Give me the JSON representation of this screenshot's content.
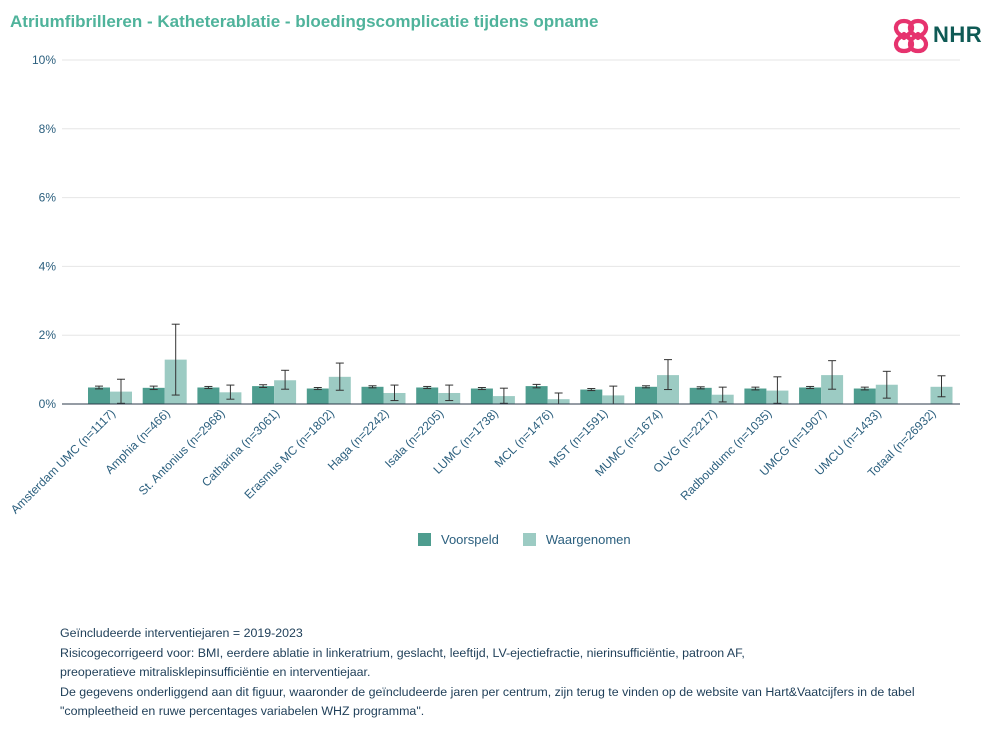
{
  "title": "Atriumfibrilleren - Katheterablatie - bloedingscomplicatie tijdens opname",
  "logo": {
    "text": "NHR",
    "icon": "heart-cross-logo-icon",
    "color": "#e6336e",
    "text_color": "#0f5a55"
  },
  "legend": [
    {
      "label": "Voorspeld",
      "color": "#4e9d8f"
    },
    {
      "label": "Waargenomen",
      "color": "#9ccbc3"
    }
  ],
  "footnote": [
    "Geïncludeerde interventiejaren = 2019-2023",
    "Risicogecorrigeerd voor: BMI, eerdere ablatie in linkeratrium, geslacht, leeftijd, LV-ejectiefractie, nierinsufficiëntie, patroon AF,",
    "preoperatieve mitralisklepinsufficiëntie en interventiejaar.",
    "De gegevens onderliggend aan dit figuur, waaronder de geïncludeerde jaren per centrum, zijn terug te vinden op de website van Hart&Vaatcijfers in de tabel",
    "\"compleetheid en ruwe percentages variabelen WHZ programma\"."
  ],
  "chart_data": {
    "type": "bar",
    "title": "Atriumfibrilleren - Katheterablatie - bloedingscomplicatie tijdens opname",
    "xlabel": "",
    "ylabel": "",
    "ylim": [
      0,
      10
    ],
    "yticks": [
      0,
      2,
      4,
      6,
      8,
      10
    ],
    "ytick_labels": [
      "0%",
      "2%",
      "4%",
      "6%",
      "8%",
      "10%"
    ],
    "grid": true,
    "legend_position": "bottom",
    "categories": [
      "Amsterdam UMC (n=1117)",
      "Amphia (n=466)",
      "St. Antonius (n=2968)",
      "Catharina (n=3061)",
      "Erasmus MC (n=1802)",
      "Haga (n=2242)",
      "Isala (n=2205)",
      "LUMC (n=1738)",
      "MCL (n=1476)",
      "MST (n=1591)",
      "MUMC (n=1674)",
      "OLVG (n=2217)",
      "Radboudumc (n=1035)",
      "UMCG (n=1907)",
      "UMCU (n=1433)",
      "Totaal (n=26932)"
    ],
    "series": [
      {
        "name": "Voorspeld",
        "color": "#4e9d8f",
        "values": [
          0.48,
          0.47,
          0.48,
          0.52,
          0.45,
          0.5,
          0.48,
          0.45,
          0.52,
          0.42,
          0.5,
          0.47,
          0.45,
          0.48,
          0.45,
          null
        ],
        "err_low": [
          0.44,
          0.42,
          0.45,
          0.48,
          0.42,
          0.47,
          0.45,
          0.42,
          0.47,
          0.39,
          0.47,
          0.44,
          0.41,
          0.45,
          0.41,
          null
        ],
        "err_high": [
          0.52,
          0.52,
          0.51,
          0.56,
          0.48,
          0.53,
          0.51,
          0.48,
          0.57,
          0.45,
          0.53,
          0.5,
          0.49,
          0.51,
          0.49,
          null
        ]
      },
      {
        "name": "Waargenomen",
        "color": "#9ccbc3",
        "values": [
          0.36,
          1.29,
          0.34,
          0.69,
          0.79,
          0.32,
          0.32,
          0.23,
          0.14,
          0.25,
          0.84,
          0.27,
          0.39,
          0.84,
          0.56,
          0.5
        ],
        "err_low": [
          0.02,
          0.26,
          0.14,
          0.43,
          0.4,
          0.1,
          0.1,
          0.02,
          0.0,
          0.0,
          0.42,
          0.06,
          0.02,
          0.43,
          0.17,
          0.21
        ],
        "err_high": [
          0.72,
          2.32,
          0.55,
          0.98,
          1.19,
          0.55,
          0.55,
          0.46,
          0.32,
          0.52,
          1.29,
          0.49,
          0.79,
          1.26,
          0.95,
          0.82
        ]
      }
    ]
  }
}
